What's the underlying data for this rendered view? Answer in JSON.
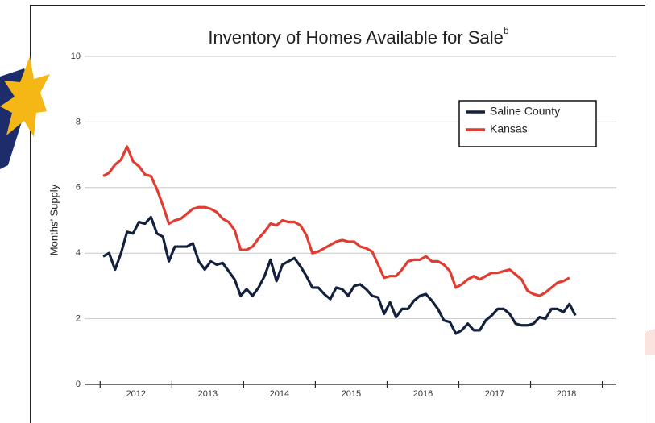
{
  "chart_data": {
    "type": "line",
    "title": "Inventory of Homes Available for Sale",
    "title_superscript": "b",
    "y_label": "Months’ Supply",
    "categories": [
      null,
      null,
      null,
      null,
      null,
      null,
      "2012",
      null,
      null,
      null,
      null,
      null,
      null,
      null,
      null,
      null,
      null,
      null,
      "2013",
      null,
      null,
      null,
      null,
      null,
      null,
      null,
      null,
      null,
      null,
      null,
      "2014",
      null,
      null,
      null,
      null,
      null,
      null,
      null,
      null,
      null,
      null,
      null,
      "2015",
      null,
      null,
      null,
      null,
      null,
      null,
      null,
      null,
      null,
      null,
      null,
      "2016",
      null,
      null,
      null,
      null,
      null,
      null,
      null,
      null,
      null,
      null,
      null,
      "2017",
      null,
      null,
      null,
      null,
      null,
      null,
      null,
      null,
      null,
      null,
      null,
      "2018",
      null
    ],
    "series": [
      {
        "name": "Saline County",
        "color": "#14213d",
        "values": [
          3.9,
          4.0,
          3.5,
          4.0,
          4.65,
          4.6,
          4.95,
          4.9,
          5.1,
          4.6,
          4.5,
          3.75,
          4.2,
          4.2,
          4.2,
          4.3,
          3.75,
          3.5,
          3.75,
          3.65,
          3.7,
          3.45,
          3.2,
          2.7,
          2.9,
          2.7,
          2.95,
          3.3,
          3.8,
          3.15,
          3.65,
          3.75,
          3.85,
          3.6,
          3.3,
          2.95,
          2.95,
          2.75,
          2.6,
          2.95,
          2.9,
          2.7,
          3.0,
          3.05,
          2.9,
          2.7,
          2.65,
          2.15,
          2.5,
          2.05,
          2.3,
          2.3,
          2.55,
          2.7,
          2.75,
          2.55,
          2.3,
          1.95,
          1.9,
          1.55,
          1.65,
          1.85,
          1.65,
          1.65,
          1.95,
          2.1,
          2.3,
          2.3,
          2.15,
          1.85,
          1.8,
          1.8,
          1.85,
          2.05,
          2.0,
          2.3,
          2.3,
          2.2,
          2.45,
          2.1
        ]
      },
      {
        "name": "Kansas",
        "color": "#e03c31",
        "values": [
          6.35,
          6.45,
          6.7,
          6.85,
          7.25,
          6.8,
          6.65,
          6.4,
          6.35,
          5.95,
          5.45,
          4.9,
          5.0,
          5.05,
          5.2,
          5.35,
          5.4,
          5.4,
          5.35,
          5.25,
          5.05,
          4.95,
          4.7,
          4.1,
          4.1,
          4.2,
          4.45,
          4.65,
          4.9,
          4.85,
          5.0,
          4.95,
          4.95,
          4.85,
          4.55,
          4.0,
          4.05,
          4.15,
          4.25,
          4.35,
          4.4,
          4.35,
          4.35,
          4.2,
          4.15,
          4.05,
          3.65,
          3.25,
          3.3,
          3.3,
          3.5,
          3.75,
          3.8,
          3.8,
          3.9,
          3.75,
          3.75,
          3.65,
          3.45,
          2.95,
          3.05,
          3.2,
          3.3,
          3.2,
          3.3,
          3.4,
          3.4,
          3.45,
          3.5,
          3.35,
          3.2,
          2.85,
          2.75,
          2.7,
          2.8,
          2.95,
          3.1,
          3.15,
          3.25,
          null
        ]
      }
    ],
    "ylim": [
      0,
      10
    ],
    "yticks": [
      0,
      2,
      4,
      6,
      8,
      10
    ],
    "grid": true,
    "legend": "upper right"
  }
}
